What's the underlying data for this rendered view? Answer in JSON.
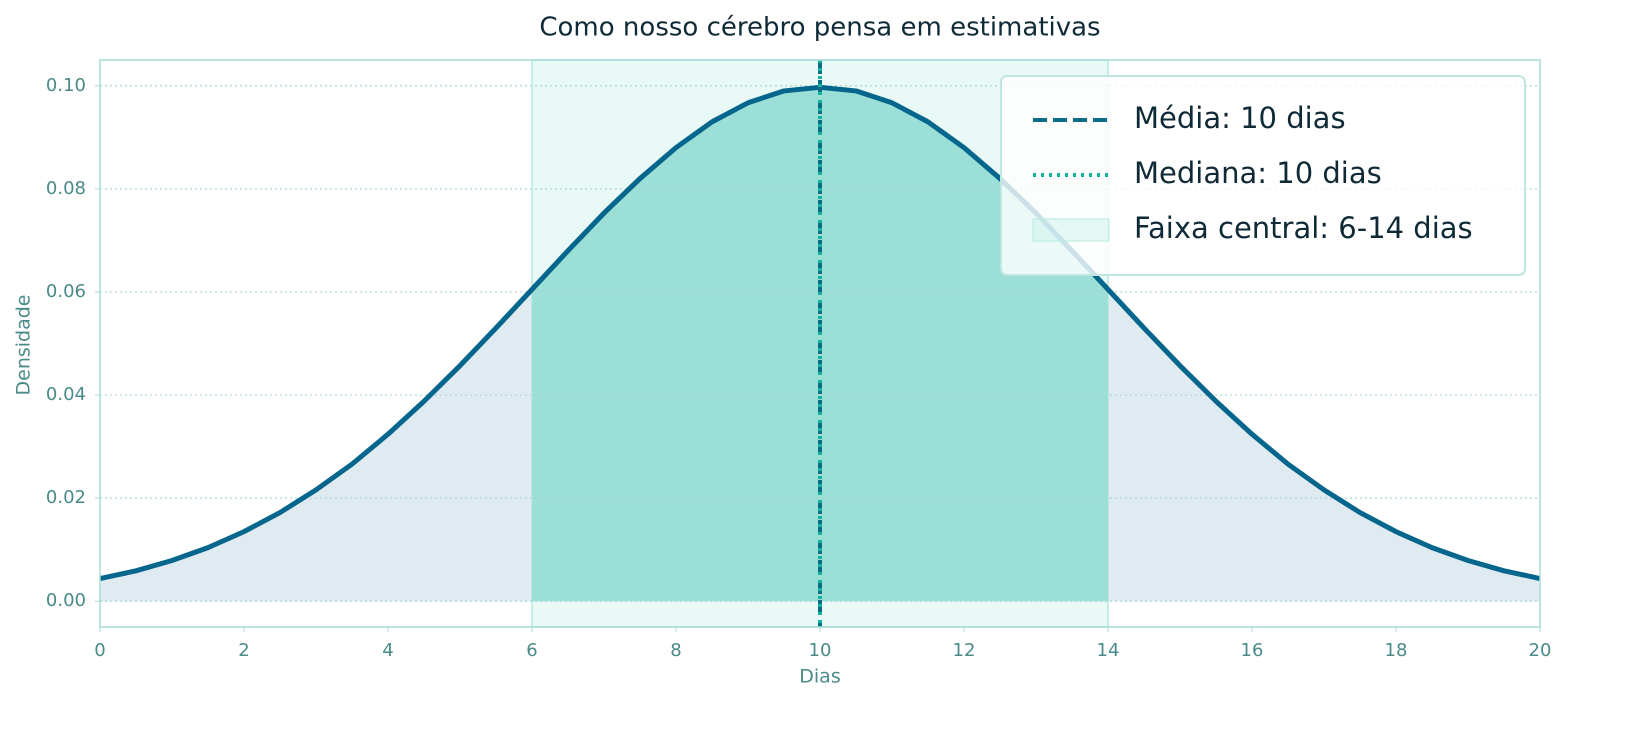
{
  "chart_data": {
    "type": "line",
    "title": "Como nosso cérebro pensa em estimativas",
    "xlabel": "Dias",
    "ylabel": "Densidade",
    "x": [
      0,
      0.5,
      1,
      1.5,
      2,
      2.5,
      3,
      3.5,
      4,
      4.5,
      5,
      5.5,
      6,
      6.5,
      7,
      7.5,
      8,
      8.5,
      9,
      9.5,
      10,
      10.5,
      11,
      11.5,
      12,
      12.5,
      13,
      13.5,
      14,
      14.5,
      15,
      15.5,
      16,
      16.5,
      17,
      17.5,
      18,
      18.5,
      19,
      19.5,
      20
    ],
    "series": [
      {
        "name": "Densidade",
        "color": "#04668c",
        "values": [
          0.0044,
          0.0059,
          0.0079,
          0.0104,
          0.0135,
          0.0172,
          0.0216,
          0.0266,
          0.0324,
          0.0388,
          0.0457,
          0.053,
          0.0605,
          0.068,
          0.0753,
          0.082,
          0.088,
          0.093,
          0.0967,
          0.099,
          0.0997,
          0.099,
          0.0967,
          0.093,
          0.088,
          0.082,
          0.0753,
          0.068,
          0.0605,
          0.053,
          0.0457,
          0.0388,
          0.0324,
          0.0266,
          0.0216,
          0.0172,
          0.0135,
          0.0104,
          0.0079,
          0.0059,
          0.0044
        ]
      }
    ],
    "vlines": [
      {
        "name": "Média: 10 dias",
        "value": 10,
        "color": "#0b6e86",
        "style": "dashed"
      },
      {
        "name": "Mediana: 10 dias",
        "value": 10,
        "color": "#14b3a0",
        "style": "dotted"
      }
    ],
    "span": {
      "name": "Faixa central: 6-14 dias",
      "range": [
        6,
        14
      ],
      "color": "#b6ebe1"
    },
    "xlim": [
      0,
      20
    ],
    "xticks": [
      0,
      2,
      4,
      6,
      8,
      10,
      12,
      14,
      16,
      18,
      20
    ],
    "ylim": [
      -0.005,
      0.105
    ],
    "yticks": [
      {
        "value": 0,
        "label": "0.00"
      },
      {
        "value": 0.02,
        "label": "0.02"
      },
      {
        "value": 0.04,
        "label": "0.04"
      },
      {
        "value": 0.06,
        "label": "0.06"
      },
      {
        "value": 0.08,
        "label": "0.08"
      },
      {
        "value": 0.1,
        "label": "0.10"
      }
    ],
    "grid": true,
    "legend": "upper right"
  }
}
